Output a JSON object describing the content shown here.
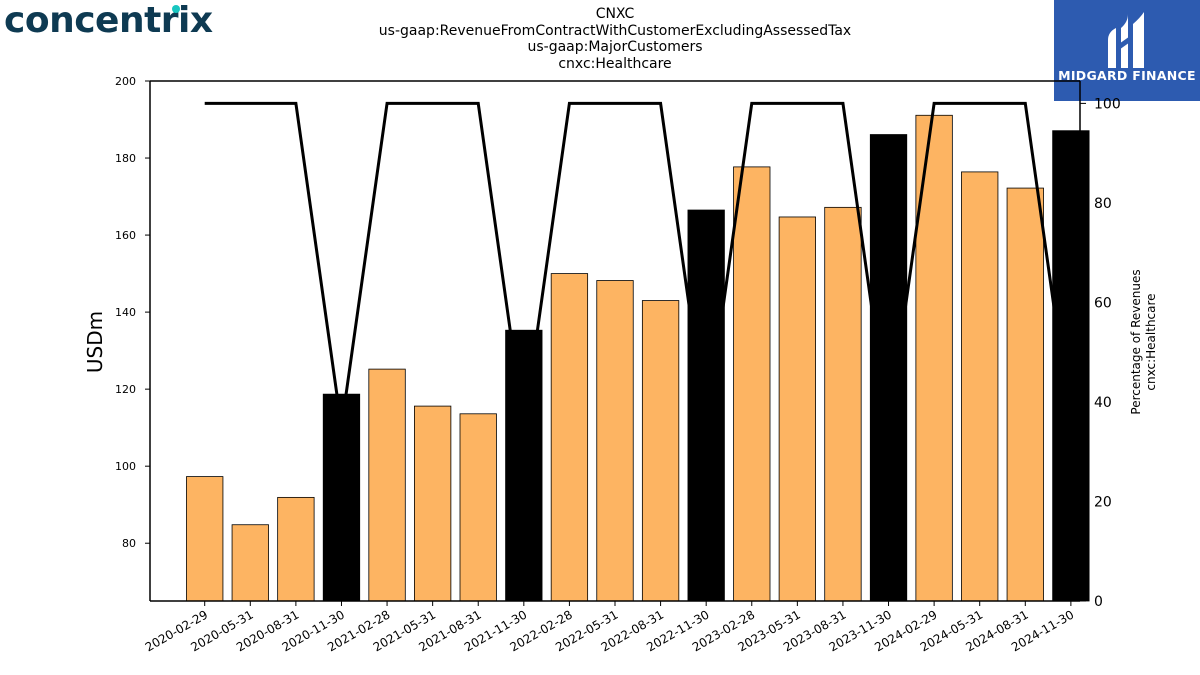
{
  "brand": {
    "name": "concentrix"
  },
  "logo": {
    "name": "MIDGARD FINANCE"
  },
  "colors": {
    "bar_regular": "#FDB462",
    "bar_highlight": "#000000",
    "line": "#000000",
    "logo_bg": "#2d5bb0",
    "brand_text": "#0e3a52",
    "brand_dot": "#18c6c0"
  },
  "chart_data": {
    "type": "bar",
    "title_lines": [
      "CNXC",
      "us-gaap:RevenueFromContractWithCustomerExcludingAssessedTax",
      "us-gaap:MajorCustomers",
      "cnxc:Healthcare"
    ],
    "ylabel": "USDm",
    "ylabel_right": [
      "Percentage of Revenues",
      "cnxc:Healthcare"
    ],
    "ylim": [
      65,
      200
    ],
    "yticks": [
      80,
      100,
      120,
      140,
      160,
      180,
      200
    ],
    "ylim_right": [
      0,
      104.5
    ],
    "yticks_right": [
      0,
      20,
      40,
      60,
      80,
      100
    ],
    "categories": [
      "2020-02-29",
      "2020-05-31",
      "2020-08-31",
      "2020-11-30",
      "2021-02-28",
      "2021-05-31",
      "2021-08-31",
      "2021-11-30",
      "2022-02-28",
      "2022-05-31",
      "2022-08-31",
      "2022-11-30",
      "2023-02-28",
      "2023-05-31",
      "2023-08-31",
      "2023-11-30",
      "2024-02-29",
      "2024-05-31",
      "2024-08-31",
      "2024-11-30"
    ],
    "series": [
      {
        "type": "bar",
        "values": [
          97.3,
          84.8,
          91.9,
          118.7,
          125.2,
          115.6,
          113.6,
          135.3,
          150.0,
          148.2,
          143.0,
          166.5,
          177.7,
          164.7,
          167.2,
          186.1,
          191.1,
          176.4,
          172.2,
          187.1
        ],
        "highlight": [
          false,
          false,
          false,
          true,
          false,
          false,
          false,
          true,
          false,
          false,
          false,
          true,
          false,
          false,
          false,
          true,
          false,
          false,
          false,
          true
        ]
      },
      {
        "type": "line",
        "axis": "right",
        "values": [
          100,
          100,
          100,
          35,
          100,
          100,
          100,
          35,
          100,
          100,
          100,
          35,
          100,
          100,
          100,
          35,
          100,
          100,
          100,
          35
        ]
      }
    ],
    "grid": false,
    "legend": "none"
  }
}
